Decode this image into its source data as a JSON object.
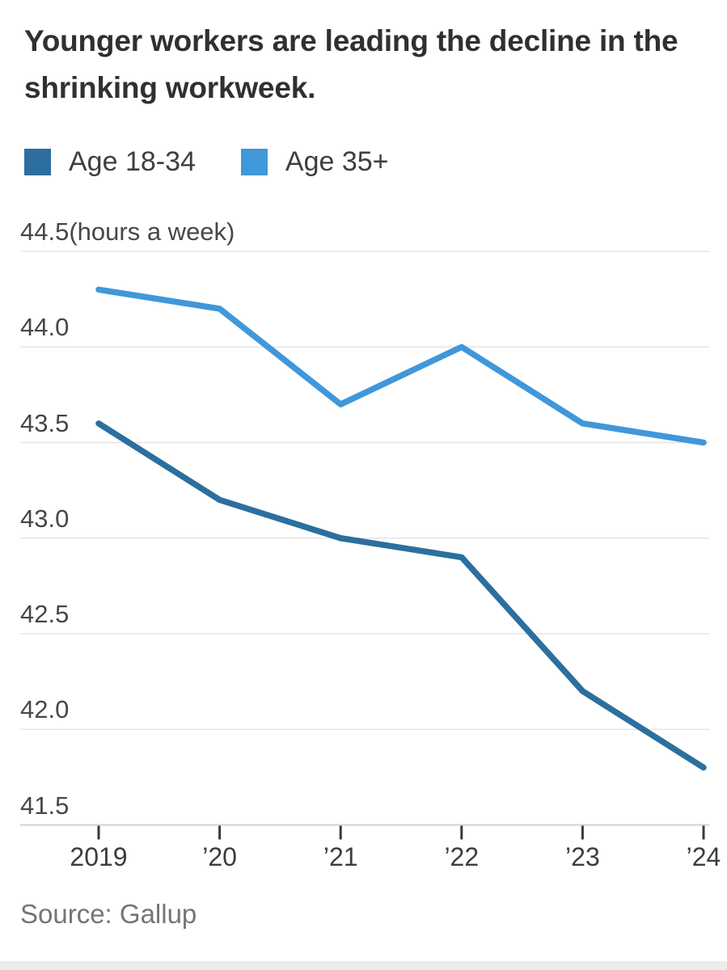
{
  "title": "Younger workers are leading the decline in the shrinking workweek.",
  "legend": [
    {
      "label": "Age 18-34",
      "color": "#2c6f9e"
    },
    {
      "label": "Age 35+",
      "color": "#4097da"
    }
  ],
  "unit_label": "(hours a week)",
  "source": "Source: Gallup",
  "colors": {
    "grid": "#e5e5e5",
    "axis": "#d2d2d2",
    "tick": "#3a3a3a",
    "bottom_bar": "#ececec",
    "series_dark": "#2c6f9e",
    "series_light": "#4097da"
  },
  "chart_data": {
    "type": "line",
    "title": "Younger workers are leading the decline in the shrinking workweek.",
    "ylabel": "(hours a week)",
    "xlabel": "",
    "x": [
      2019,
      2020,
      2021,
      2022,
      2023,
      2024
    ],
    "xtick_labels": [
      "2019",
      "’20",
      "’21",
      "’22",
      "’23",
      "’24"
    ],
    "series": [
      {
        "name": "Age 18-34",
        "color": "#2c6f9e",
        "values": [
          43.6,
          43.2,
          43.0,
          42.9,
          42.2,
          41.8
        ]
      },
      {
        "name": "Age 35+",
        "color": "#4097da",
        "values": [
          44.3,
          44.2,
          43.7,
          44.0,
          43.6,
          43.5
        ]
      }
    ],
    "ylim": [
      41.5,
      44.5
    ],
    "yticks": [
      44.5,
      44.0,
      43.5,
      43.0,
      42.5,
      42.0,
      41.5
    ],
    "ytick_labels": [
      "44.5",
      "44.0",
      "43.5",
      "43.0",
      "42.5",
      "42.0",
      "41.5"
    ],
    "grid": true,
    "legend_position": "top-left",
    "source": "Source: Gallup"
  }
}
